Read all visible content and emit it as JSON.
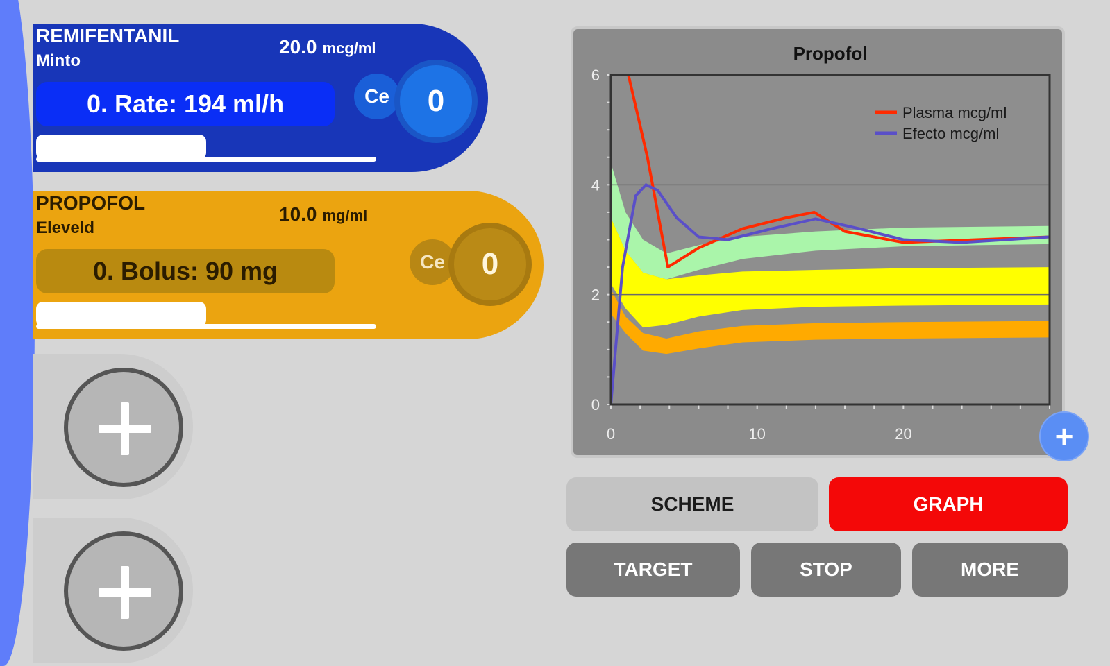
{
  "drugs": [
    {
      "name": "REMIFENTANIL",
      "model": "Minto",
      "concentration": "20.0",
      "concentration_unit": "mcg/ml",
      "rate_label": "0. Rate: 194 ml/h",
      "ce_label": "Ce",
      "ce_value": "0"
    },
    {
      "name": "PROPOFOL",
      "model": "Eleveld",
      "concentration": "10.0",
      "concentration_unit": "mg/ml",
      "rate_label": "0. Bolus: 90 mg",
      "ce_label": "Ce",
      "ce_value": "0"
    }
  ],
  "chart_data": {
    "type": "line",
    "title": "Propofol",
    "xlim": [
      0,
      30
    ],
    "ylim": [
      0,
      6
    ],
    "x_ticks": [
      "0",
      "10",
      "20"
    ],
    "y_ticks": [
      "0",
      "2",
      "4",
      "6"
    ],
    "grid": true,
    "legend_position": "top-right",
    "series": [
      {
        "name": "Plasma mcg/ml",
        "color": "#ff2a00",
        "points": [
          [
            1.2,
            6.0
          ],
          [
            2.5,
            4.5
          ],
          [
            3.9,
            2.5
          ],
          [
            6,
            2.85
          ],
          [
            9,
            3.2
          ],
          [
            12,
            3.4
          ],
          [
            13.9,
            3.5
          ],
          [
            16,
            3.15
          ],
          [
            20,
            2.95
          ],
          [
            25,
            3.0
          ],
          [
            30,
            3.05
          ]
        ]
      },
      {
        "name": "Efecto mcg/ml",
        "color": "#5a4fc8",
        "points": [
          [
            0,
            0
          ],
          [
            0.8,
            2.5
          ],
          [
            1.7,
            3.8
          ],
          [
            2.4,
            4.0
          ],
          [
            3.2,
            3.9
          ],
          [
            4.5,
            3.4
          ],
          [
            6,
            3.05
          ],
          [
            8,
            3.0
          ],
          [
            11,
            3.2
          ],
          [
            14,
            3.38
          ],
          [
            17,
            3.2
          ],
          [
            20,
            3.0
          ],
          [
            24,
            2.95
          ],
          [
            27,
            3.0
          ],
          [
            30,
            3.05
          ]
        ]
      }
    ],
    "bands": [
      {
        "color": "#aaf5aa",
        "upper": [
          [
            0,
            4.4
          ],
          [
            1,
            3.5
          ],
          [
            2.2,
            3.0
          ],
          [
            3.8,
            2.75
          ],
          [
            6,
            2.9
          ],
          [
            9,
            3.05
          ],
          [
            14,
            3.15
          ],
          [
            20,
            3.22
          ],
          [
            30,
            3.25
          ]
        ],
        "lower": [
          [
            0,
            3.4
          ],
          [
            1,
            2.8
          ],
          [
            2.2,
            2.4
          ],
          [
            3.8,
            2.28
          ],
          [
            6,
            2.45
          ],
          [
            9,
            2.65
          ],
          [
            14,
            2.8
          ],
          [
            20,
            2.88
          ],
          [
            30,
            2.92
          ]
        ]
      },
      {
        "color": "#ffff00",
        "upper": [
          [
            0,
            3.4
          ],
          [
            1,
            2.8
          ],
          [
            2.2,
            2.4
          ],
          [
            3.8,
            2.28
          ],
          [
            6,
            2.35
          ],
          [
            9,
            2.42
          ],
          [
            14,
            2.45
          ],
          [
            20,
            2.48
          ],
          [
            30,
            2.5
          ]
        ],
        "lower": [
          [
            0,
            2.2
          ],
          [
            1,
            1.75
          ],
          [
            2.2,
            1.4
          ],
          [
            3.8,
            1.45
          ],
          [
            6,
            1.6
          ],
          [
            9,
            1.72
          ],
          [
            14,
            1.78
          ],
          [
            20,
            1.8
          ],
          [
            30,
            1.82
          ]
        ]
      },
      {
        "color": "#ffaa00",
        "upper": [
          [
            0,
            2.1
          ],
          [
            1,
            1.6
          ],
          [
            2.2,
            1.3
          ],
          [
            3.8,
            1.2
          ],
          [
            6,
            1.33
          ],
          [
            9,
            1.43
          ],
          [
            14,
            1.48
          ],
          [
            20,
            1.5
          ],
          [
            30,
            1.52
          ]
        ],
        "lower": [
          [
            0,
            1.65
          ],
          [
            1,
            1.3
          ],
          [
            2.2,
            0.98
          ],
          [
            3.8,
            0.92
          ],
          [
            6,
            1.02
          ],
          [
            9,
            1.13
          ],
          [
            14,
            1.18
          ],
          [
            20,
            1.2
          ],
          [
            30,
            1.22
          ]
        ]
      }
    ]
  },
  "buttons": {
    "add": "+",
    "scheme": "SCHEME",
    "graph": "GRAPH",
    "target": "TARGET",
    "stop": "STOP",
    "more": "MORE"
  }
}
